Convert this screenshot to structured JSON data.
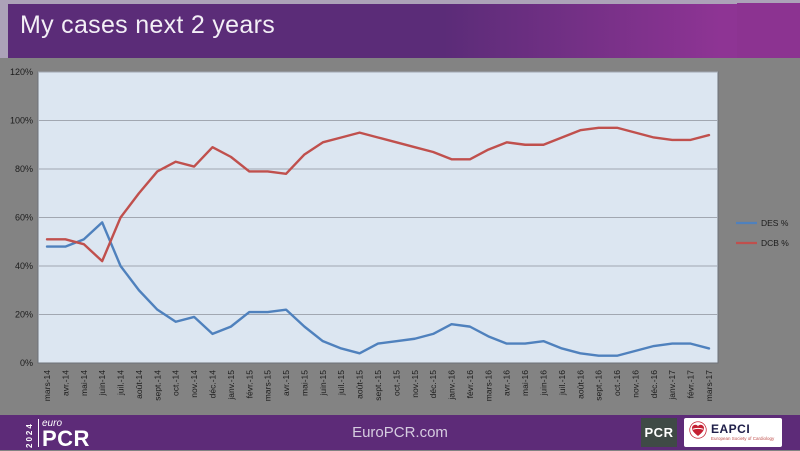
{
  "slide": {
    "title": "My cases next 2 years",
    "footer_url": "EuroPCR.com"
  },
  "brand": {
    "year": "2024",
    "euro": "euro",
    "pcr": "PCR"
  },
  "footer_logos": {
    "pcr_label": "PCR",
    "eapci_label": "EAPCI",
    "eapci_sub": "European Society of Cardiology"
  },
  "colors": {
    "header_purple": "#5b2c78",
    "header_magenta": "#8c3391",
    "footer_purple": "#5d2b78",
    "slide_gray": "#838383",
    "plot_bg": "#dce6f1",
    "plot_border": "#6e7278",
    "grid": "#a1a7b1",
    "tick_text": "#1c1c1c",
    "des_blue": "#4f81bd",
    "dcb_red": "#c0504d"
  },
  "chart_data": {
    "type": "line",
    "title": "",
    "xlabel": "",
    "ylabel": "",
    "ylim": [
      0,
      120
    ],
    "ytick_step": 20,
    "ytick_suffix": "%",
    "grid": true,
    "legend_position": "right",
    "categories": [
      "mars-14",
      "avr.-14",
      "mai-14",
      "juin-14",
      "juil.-14",
      "août-14",
      "sept.-14",
      "oct.-14",
      "nov.-14",
      "déc.-14",
      "janv.-15",
      "févr.-15",
      "mars-15",
      "avr.-15",
      "mai-15",
      "juin-15",
      "juil.-15",
      "août-15",
      "sept.-15",
      "oct.-15",
      "nov.-15",
      "déc.-15",
      "janv.-16",
      "févr.-16",
      "mars-16",
      "avr.-16",
      "mai-16",
      "juin-16",
      "juil.-16",
      "août-16",
      "sept.-16",
      "oct.-16",
      "nov.-16",
      "déc.-16",
      "janv.-17",
      "févr.-17",
      "mars-17"
    ],
    "series": [
      {
        "name": "DES %",
        "color": "#4f81bd",
        "values": [
          48,
          48,
          51,
          58,
          40,
          30,
          22,
          17,
          19,
          12,
          15,
          21,
          21,
          22,
          15,
          9,
          6,
          4,
          8,
          9,
          10,
          12,
          16,
          15,
          11,
          8,
          8,
          9,
          6,
          4,
          3,
          3,
          5,
          7,
          8,
          8,
          6
        ]
      },
      {
        "name": "DCB %",
        "color": "#c0504d",
        "values": [
          51,
          51,
          49,
          42,
          60,
          70,
          79,
          83,
          81,
          89,
          85,
          79,
          79,
          78,
          86,
          91,
          93,
          95,
          93,
          91,
          89,
          87,
          84,
          84,
          88,
          91,
          90,
          90,
          93,
          96,
          97,
          97,
          95,
          93,
          92,
          92,
          94
        ]
      }
    ]
  }
}
